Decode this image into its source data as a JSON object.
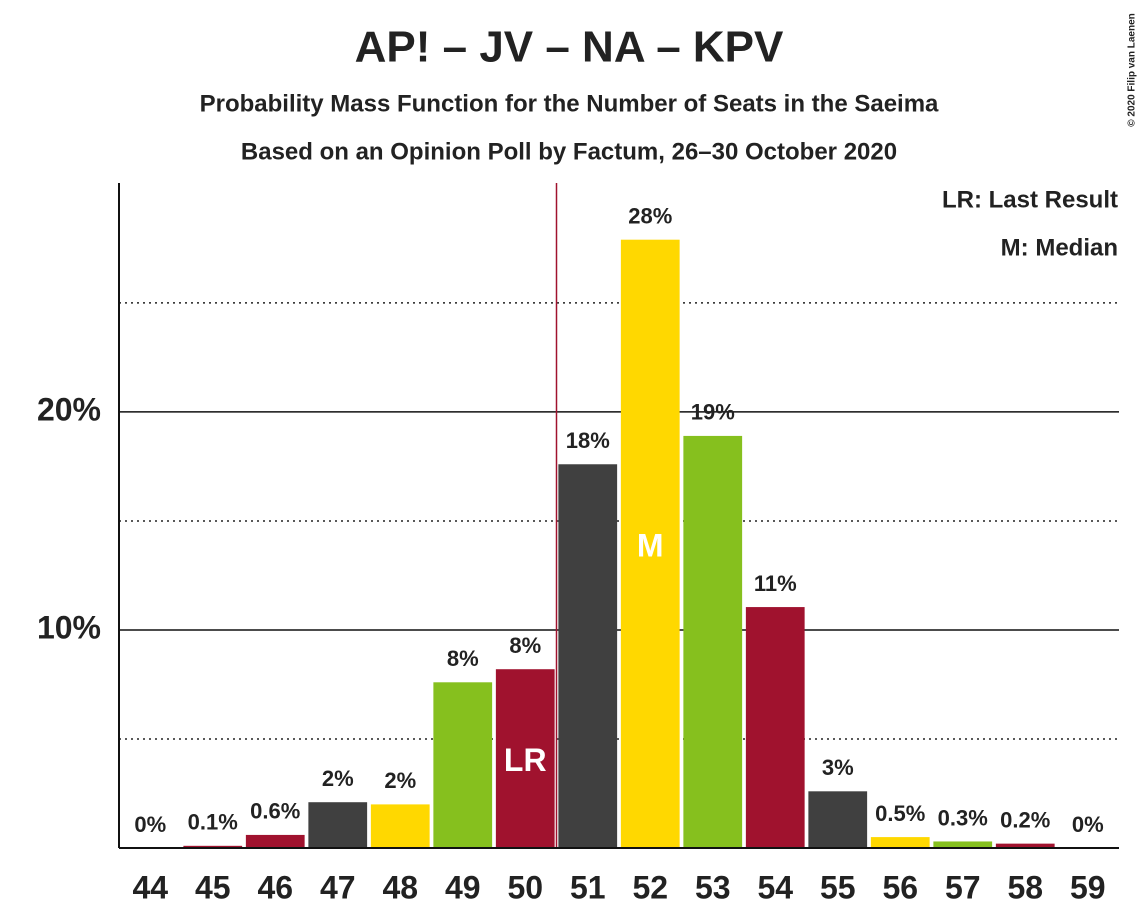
{
  "chart_data": {
    "type": "bar",
    "title": "AP! – JV – NA – KPV",
    "subtitle": "Probability Mass Function for the Number of Seats in the Saeima",
    "subtitle2": "Based on an Opinion Poll by Factum, 26–30 October 2020",
    "copyright": "© 2020 Filip van Laenen",
    "categories": [
      "44",
      "45",
      "46",
      "47",
      "48",
      "49",
      "50",
      "51",
      "52",
      "53",
      "54",
      "55",
      "56",
      "57",
      "58",
      "59"
    ],
    "values": [
      0,
      0.1,
      0.6,
      2.1,
      2.0,
      7.6,
      8.2,
      17.6,
      27.9,
      18.9,
      11.05,
      2.6,
      0.5,
      0.3,
      0.2,
      0
    ],
    "value_labels": [
      "0%",
      "0.1%",
      "0.6%",
      "2%",
      "2%",
      "8%",
      "8%",
      "18%",
      "28%",
      "19%",
      "11%",
      "3%",
      "0.5%",
      "0.3%",
      "0.2%",
      "0%"
    ],
    "colors": [
      "#86c01e",
      "#a0122e",
      "#a0122e",
      "#404040",
      "#ffd800",
      "#86c01e",
      "#a0122e",
      "#404040",
      "#ffd800",
      "#86c01e",
      "#a0122e",
      "#404040",
      "#ffd800",
      "#86c01e",
      "#a0122e",
      "#404040"
    ],
    "ylim": [
      0,
      30.5
    ],
    "yticks": [
      {
        "value": 10,
        "label": "10%"
      },
      {
        "value": 20,
        "label": "20%"
      }
    ],
    "minor_yticks": [
      5,
      15,
      25
    ],
    "markers": [
      {
        "label": "LR",
        "category": "50"
      },
      {
        "label": "M",
        "category": "52"
      }
    ],
    "last_result_category": "50",
    "legend": [
      "LR: Last Result",
      "M: Median"
    ]
  }
}
